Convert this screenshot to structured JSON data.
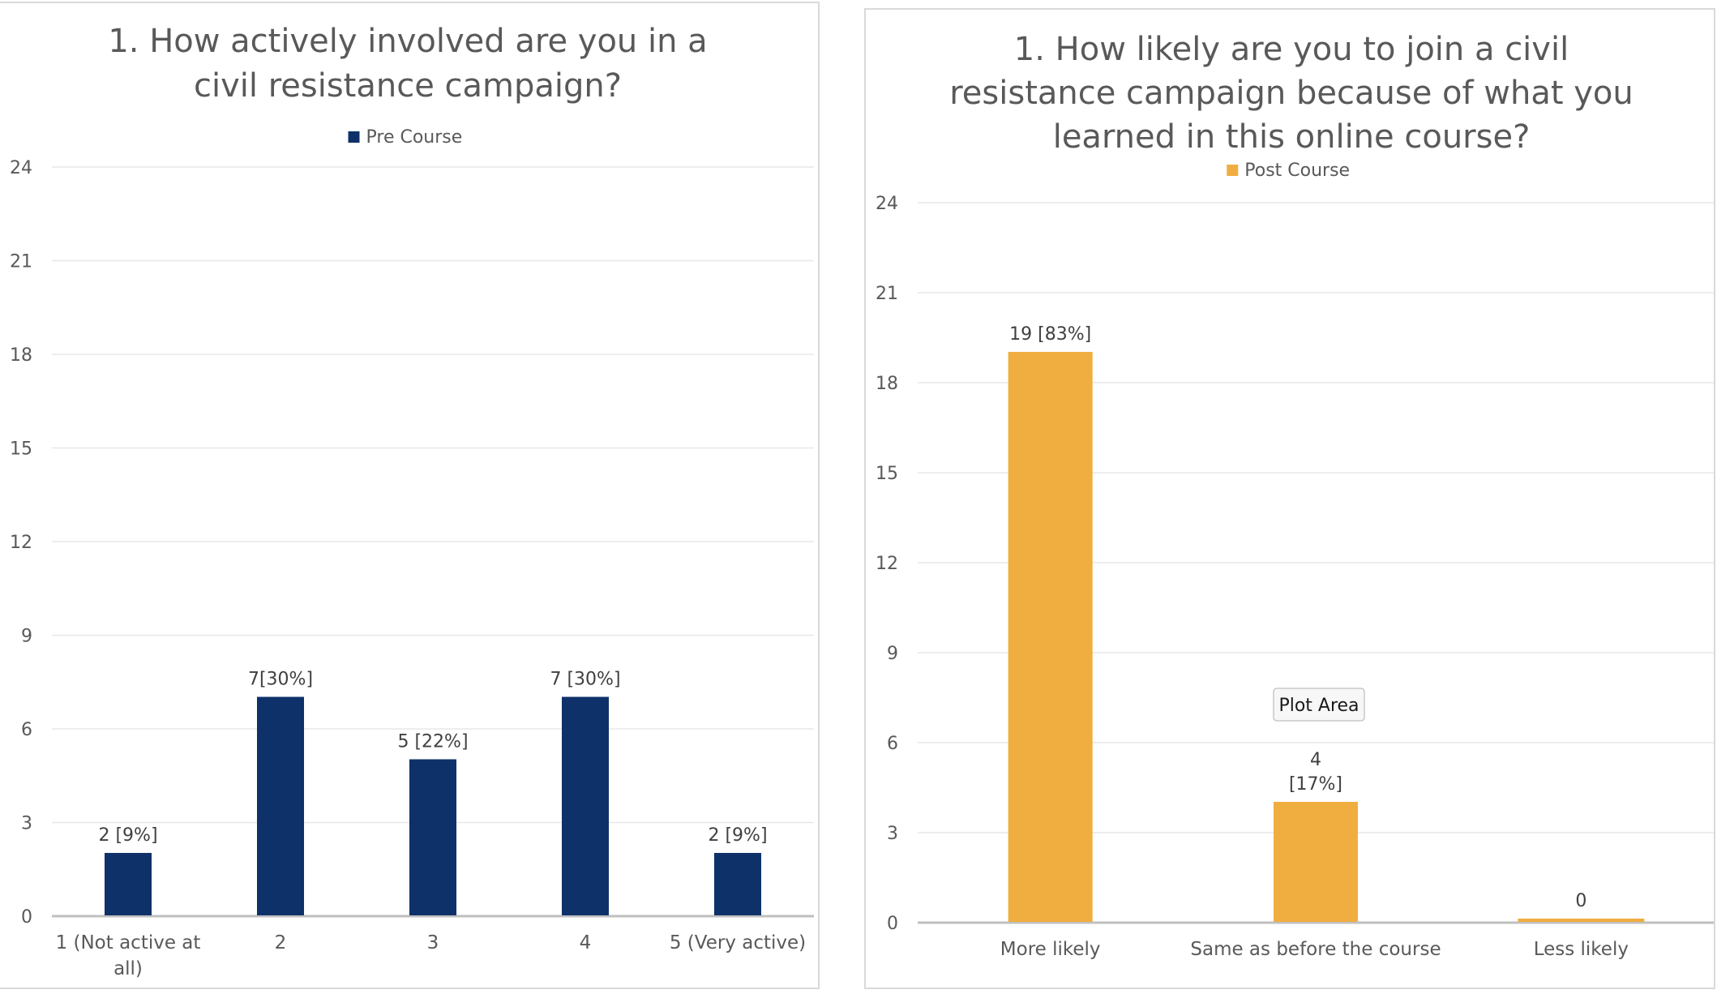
{
  "chart_data": [
    {
      "type": "bar",
      "title_lines": [
        "1. How actively involved are you in a",
        "civil resistance campaign?"
      ],
      "legend": [
        {
          "name": "Pre Course",
          "color": "#0e3169"
        }
      ],
      "legend_position": "top",
      "categories": [
        [
          "1 (Not active at",
          "all)"
        ],
        [
          "2"
        ],
        [
          "3"
        ],
        [
          "4"
        ],
        [
          "5 (Very active)"
        ]
      ],
      "series": [
        {
          "name": "Pre Course",
          "color": "#0e3169",
          "values": [
            2,
            7,
            5,
            7,
            2
          ],
          "labels": [
            [
              "2 [9%]"
            ],
            [
              "7[30%]"
            ],
            [
              "5 [22%]"
            ],
            [
              "7 [30%]"
            ],
            [
              "2 [9%]"
            ]
          ]
        }
      ],
      "ylim": [
        0,
        24
      ],
      "yticks": [
        0,
        3,
        6,
        9,
        12,
        15,
        18,
        21,
        24
      ],
      "grid": true
    },
    {
      "type": "bar",
      "title_lines": [
        "1. How likely are you to join a civil",
        "resistance campaign because of what you",
        "learned in this online course?"
      ],
      "legend": [
        {
          "name": "Post Course",
          "color": "#f0ae41"
        }
      ],
      "legend_position": "top",
      "categories": [
        [
          "More likely"
        ],
        [
          "Same as before the course"
        ],
        [
          "Less likely"
        ]
      ],
      "series": [
        {
          "name": "Post Course",
          "color": "#f0ae41",
          "values": [
            19,
            4,
            0
          ],
          "labels": [
            [
              "19 [83%]"
            ],
            [
              "4",
              "[17%]"
            ],
            [
              "0"
            ]
          ]
        }
      ],
      "ylim": [
        0,
        24
      ],
      "yticks": [
        0,
        3,
        6,
        9,
        12,
        15,
        18,
        21,
        24
      ],
      "grid": true,
      "tooltip": "Plot Area"
    }
  ]
}
